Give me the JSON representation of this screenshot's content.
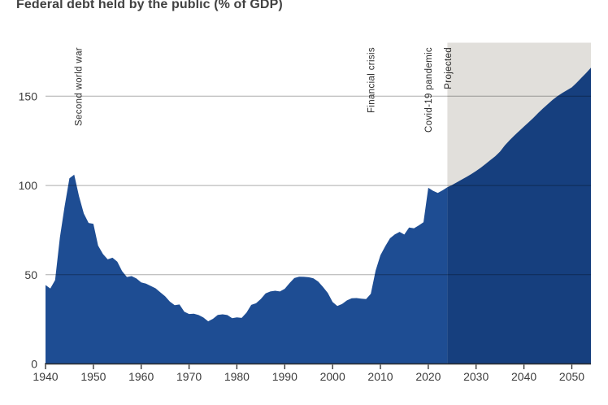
{
  "chart_data": {
    "type": "area",
    "title": "Federal debt held by the public (% of GDP)",
    "xlabel": "",
    "ylabel": "",
    "xlim": [
      1940,
      2054
    ],
    "ylim": [
      0,
      180
    ],
    "x_ticks": [
      1940,
      1950,
      1960,
      1970,
      1980,
      1990,
      2000,
      2010,
      2020,
      2030,
      2040,
      2050
    ],
    "y_ticks": [
      0,
      50,
      100,
      150
    ],
    "y_gridlines": [
      50,
      100,
      150
    ],
    "grid": "horizontal, drawn over area fill",
    "legend_position": "none",
    "projection_start_year": 2024,
    "annotations": [
      {
        "label": "Second world war",
        "year": 1946.8
      },
      {
        "label": "Financial crisis",
        "year": 2008
      },
      {
        "label": "Covid-19 pandemic",
        "year": 2019.9
      },
      {
        "label": "Projected",
        "year": 2024
      }
    ],
    "colors": {
      "historical_area": "#1E4D93",
      "projected_area": "#163F7E",
      "projected_background": "#E1DFDB",
      "gridline": "rgba(0,0,0,0.32)",
      "axis": "#2a2a2a",
      "tick_label": "#3d3d3d",
      "annotation_text": "#2b2b2b",
      "title_text": "#414141"
    },
    "series": [
      {
        "name": "Historical",
        "color": "#1E4D93",
        "points": [
          [
            1940,
            44.2
          ],
          [
            1941,
            42.3
          ],
          [
            1942,
            47.0
          ],
          [
            1943,
            70.9
          ],
          [
            1944,
            88.3
          ],
          [
            1945,
            104.0
          ],
          [
            1946,
            106.1
          ],
          [
            1947,
            94.0
          ],
          [
            1948,
            84.3
          ],
          [
            1949,
            79.0
          ],
          [
            1950,
            78.5
          ],
          [
            1951,
            66.3
          ],
          [
            1952,
            61.6
          ],
          [
            1953,
            58.6
          ],
          [
            1954,
            59.5
          ],
          [
            1955,
            57.3
          ],
          [
            1956,
            52.0
          ],
          [
            1957,
            48.7
          ],
          [
            1958,
            49.2
          ],
          [
            1959,
            47.9
          ],
          [
            1960,
            45.7
          ],
          [
            1961,
            45.0
          ],
          [
            1962,
            43.7
          ],
          [
            1963,
            42.4
          ],
          [
            1964,
            40.1
          ],
          [
            1965,
            37.9
          ],
          [
            1966,
            34.9
          ],
          [
            1967,
            32.9
          ],
          [
            1968,
            33.3
          ],
          [
            1969,
            29.3
          ],
          [
            1970,
            28.0
          ],
          [
            1971,
            28.1
          ],
          [
            1972,
            27.4
          ],
          [
            1973,
            26.0
          ],
          [
            1974,
            23.9
          ],
          [
            1975,
            25.3
          ],
          [
            1976,
            27.5
          ],
          [
            1977,
            27.8
          ],
          [
            1978,
            27.4
          ],
          [
            1979,
            25.6
          ],
          [
            1980,
            26.1
          ],
          [
            1981,
            25.8
          ],
          [
            1982,
            28.7
          ],
          [
            1983,
            33.1
          ],
          [
            1984,
            34.0
          ],
          [
            1985,
            36.4
          ],
          [
            1986,
            39.5
          ],
          [
            1987,
            40.6
          ],
          [
            1988,
            41.0
          ],
          [
            1989,
            40.6
          ],
          [
            1990,
            42.1
          ],
          [
            1991,
            45.3
          ],
          [
            1992,
            48.1
          ],
          [
            1993,
            48.9
          ],
          [
            1994,
            48.8
          ],
          [
            1995,
            48.6
          ],
          [
            1996,
            48.0
          ],
          [
            1997,
            46.1
          ],
          [
            1998,
            43.1
          ],
          [
            1999,
            39.8
          ],
          [
            2000,
            34.7
          ],
          [
            2001,
            32.5
          ],
          [
            2002,
            33.6
          ],
          [
            2003,
            35.6
          ],
          [
            2004,
            36.8
          ],
          [
            2005,
            36.9
          ],
          [
            2006,
            36.6
          ],
          [
            2007,
            36.3
          ],
          [
            2008,
            39.3
          ],
          [
            2009,
            52.3
          ],
          [
            2010,
            60.9
          ],
          [
            2011,
            65.9
          ],
          [
            2012,
            70.4
          ],
          [
            2013,
            72.6
          ],
          [
            2014,
            74.0
          ],
          [
            2015,
            72.5
          ],
          [
            2016,
            76.4
          ],
          [
            2017,
            76.0
          ],
          [
            2018,
            77.6
          ],
          [
            2019,
            79.4
          ],
          [
            2020,
            98.7
          ],
          [
            2021,
            97.0
          ],
          [
            2022,
            95.8
          ],
          [
            2023,
            97.3
          ],
          [
            2024,
            99.0
          ]
        ]
      },
      {
        "name": "Projected",
        "color": "#163F7E",
        "points": [
          [
            2024,
            99.0
          ],
          [
            2025,
            100.3
          ],
          [
            2026,
            101.8
          ],
          [
            2027,
            103.3
          ],
          [
            2028,
            104.8
          ],
          [
            2029,
            106.4
          ],
          [
            2030,
            108.1
          ],
          [
            2031,
            110.0
          ],
          [
            2032,
            112.1
          ],
          [
            2033,
            114.3
          ],
          [
            2034,
            116.4
          ],
          [
            2035,
            119.0
          ],
          [
            2036,
            122.5
          ],
          [
            2037,
            125.3
          ],
          [
            2038,
            128.0
          ],
          [
            2039,
            130.5
          ],
          [
            2040,
            133.0
          ],
          [
            2041,
            135.5
          ],
          [
            2042,
            138.0
          ],
          [
            2043,
            140.7
          ],
          [
            2044,
            143.2
          ],
          [
            2045,
            145.6
          ],
          [
            2046,
            148.0
          ],
          [
            2047,
            150.0
          ],
          [
            2048,
            151.8
          ],
          [
            2049,
            153.4
          ],
          [
            2050,
            155.0
          ],
          [
            2051,
            157.5
          ],
          [
            2052,
            160.3
          ],
          [
            2053,
            163.0
          ],
          [
            2054,
            166.0
          ]
        ]
      }
    ]
  }
}
